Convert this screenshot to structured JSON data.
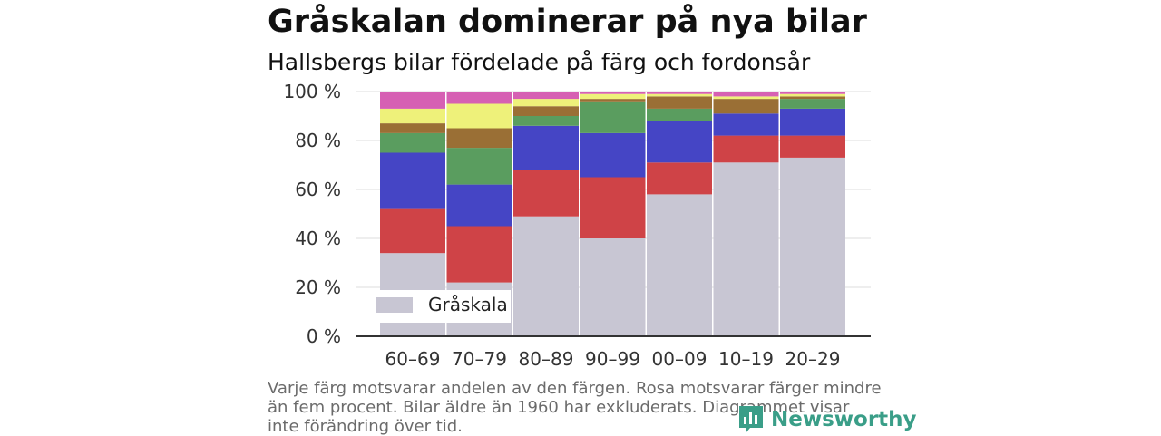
{
  "title": "Gråskalan dominerar på nya bilar",
  "subtitle": "Hallsbergs bilar fördelade på färg och fordonsår",
  "footnote": "Varje färg motsvarar andelen av den färgen. Rosa motsvarar färger mindre än fem procent. Bilar äldre än 1960 har exkluderats. Diagrammet visar inte förändring över tid.",
  "brand": {
    "name": "Newsworthy",
    "icon": "newsworthy-logo-icon",
    "color": "#3a9e88"
  },
  "chart_data": {
    "type": "bar",
    "stacked": true,
    "categories": [
      "60–69",
      "70–79",
      "80–89",
      "90–99",
      "00–09",
      "10–19",
      "20–29"
    ],
    "y_unit": "%",
    "ylim": [
      0,
      100
    ],
    "yticks": [
      0,
      20,
      40,
      60,
      80,
      100
    ],
    "ytick_labels": [
      "0 %",
      "20 %",
      "40 %",
      "60 %",
      "80 %",
      "100 %"
    ],
    "grid": true,
    "legend": {
      "position": "bottom-left",
      "entries": [
        "Gråskala"
      ]
    },
    "series": [
      {
        "name": "Gråskala",
        "color": "#c8c6d3",
        "values": [
          34,
          22,
          49,
          40,
          58,
          71,
          73
        ]
      },
      {
        "color": "#cf4347",
        "values": [
          18,
          23,
          19,
          25,
          13,
          11,
          9
        ]
      },
      {
        "color": "#4545c5",
        "values": [
          23,
          17,
          18,
          18,
          17,
          9,
          11
        ]
      },
      {
        "color": "#5a9d5f",
        "values": [
          8,
          15,
          4,
          13,
          5,
          0,
          4
        ]
      },
      {
        "color": "#9a6f35",
        "values": [
          4,
          8,
          4,
          1,
          5,
          6,
          1
        ]
      },
      {
        "color": "#eef17a",
        "values": [
          6,
          10,
          3,
          2,
          1,
          1,
          1
        ]
      },
      {
        "color": "#d660b3",
        "values": [
          7,
          5,
          3,
          1,
          1,
          2,
          1
        ]
      }
    ]
  }
}
